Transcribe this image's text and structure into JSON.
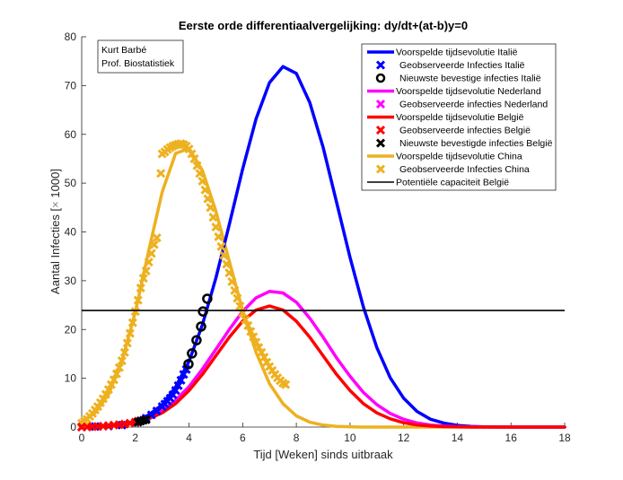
{
  "chart_data": {
    "type": "line",
    "title": "Eerste orde differentiaalvergelijking: dy/dt+(at-b)y=0",
    "xlabel": "Tijd [Weken] sinds uitbraak",
    "ylabel": "Aantal Infecties [× 1000]",
    "ylabel_parts": {
      "text": "Aantal Infecties [",
      "symbol": "×",
      "tail": " 1000]"
    },
    "xlim": [
      0,
      18
    ],
    "ylim": [
      0,
      80
    ],
    "xticks": [
      0,
      2,
      4,
      6,
      8,
      10,
      12,
      14,
      16,
      18
    ],
    "yticks": [
      0,
      10,
      20,
      30,
      40,
      50,
      60,
      70,
      80
    ],
    "grid": false,
    "legend_position": "top-right",
    "annotation": [
      "Kurt Barbé",
      "Prof. Biostatistiek"
    ],
    "x": [
      0,
      0.5,
      1,
      1.5,
      2,
      2.5,
      3,
      3.5,
      4,
      4.5,
      5,
      5.5,
      6,
      6.5,
      7,
      7.5,
      8,
      8.5,
      9,
      9.5,
      10,
      10.5,
      11,
      11.5,
      12,
      12.5,
      13,
      13.5,
      14,
      14.5,
      15,
      15.5,
      16,
      16.5,
      17,
      17.5,
      18
    ],
    "series": [
      {
        "name": "Voorspelde tijdsevolutie Italië",
        "kind": "line",
        "color": "#0000ff",
        "values": [
          0.04,
          0.1,
          0.25,
          0.57,
          1.2,
          2.5,
          4.6,
          8.2,
          13.5,
          21.0,
          30.5,
          41.5,
          52.9,
          63.2,
          70.6,
          73.9,
          72.5,
          66.5,
          57.3,
          46.1,
          34.8,
          24.6,
          16.3,
          10.1,
          5.9,
          3.2,
          1.6,
          0.8,
          0.35,
          0.15,
          0.06,
          0.02,
          0,
          0,
          0,
          0,
          0
        ]
      },
      {
        "name": "Geobserveerde Infecties Italië",
        "kind": "scatter",
        "marker": "x",
        "color": "#0000ff",
        "points": [
          [
            0,
            0.0
          ],
          [
            0.5,
            0.1
          ],
          [
            1.0,
            0.2
          ],
          [
            1.5,
            0.4
          ],
          [
            2.0,
            0.9
          ],
          [
            2.2,
            1.3
          ],
          [
            2.4,
            1.8
          ],
          [
            2.6,
            2.5
          ],
          [
            2.8,
            3.3
          ],
          [
            3.0,
            4.2
          ],
          [
            3.1,
            4.7
          ],
          [
            3.2,
            5.3
          ],
          [
            3.3,
            5.9
          ],
          [
            3.4,
            6.6
          ],
          [
            3.5,
            7.5
          ],
          [
            3.6,
            8.5
          ],
          [
            3.7,
            9.6
          ],
          [
            3.8,
            10.8
          ],
          [
            3.9,
            11.8
          ]
        ]
      },
      {
        "name": "Nieuwste bevestige infecties Italië",
        "kind": "scatter",
        "marker": "o",
        "color": "#000000",
        "points": [
          [
            3.98,
            12.9
          ],
          [
            4.11,
            15.1
          ],
          [
            4.28,
            17.8
          ],
          [
            4.45,
            20.6
          ],
          [
            4.52,
            23.7
          ],
          [
            4.68,
            26.3
          ]
        ]
      },
      {
        "name": "Voorspelde tijdsevolutie Nederland",
        "kind": "line",
        "color": "#ff00ff",
        "values": [
          0.05,
          0.13,
          0.28,
          0.57,
          1.1,
          2.0,
          3.4,
          5.5,
          8.3,
          11.9,
          15.9,
          20.0,
          23.7,
          26.5,
          27.8,
          27.5,
          25.6,
          22.3,
          18.4,
          14.2,
          10.4,
          7.1,
          4.6,
          2.8,
          1.6,
          0.85,
          0.43,
          0.2,
          0.09,
          0.04,
          0,
          0,
          0,
          0,
          0,
          0,
          0
        ]
      },
      {
        "name": "Geobserveerde infecties Nederland",
        "kind": "scatter",
        "marker": "x",
        "color": "#ff00ff",
        "points": []
      },
      {
        "name": "Voorspelde tijdsevolutie België",
        "kind": "line",
        "color": "#ff0000",
        "values": [
          0.04,
          0.09,
          0.2,
          0.44,
          0.89,
          1.7,
          2.9,
          4.8,
          7.5,
          10.8,
          14.6,
          18.4,
          21.7,
          24.0,
          24.8,
          24.0,
          21.7,
          18.4,
          14.6,
          10.8,
          7.5,
          4.8,
          2.9,
          1.7,
          0.89,
          0.44,
          0.2,
          0.09,
          0.04,
          0,
          0,
          0,
          0,
          0,
          0,
          0,
          0
        ]
      },
      {
        "name": "Geobserveerde infecties België",
        "kind": "scatter",
        "marker": "x",
        "color": "#ff0000",
        "points": [
          [
            0,
            0.0
          ],
          [
            0.2,
            0.0
          ],
          [
            0.4,
            0.1
          ],
          [
            0.6,
            0.1
          ],
          [
            0.8,
            0.2
          ],
          [
            1.0,
            0.3
          ],
          [
            1.2,
            0.4
          ],
          [
            1.4,
            0.5
          ],
          [
            1.6,
            0.6
          ],
          [
            1.8,
            0.8
          ],
          [
            2.0,
            1.0
          ],
          [
            2.1,
            1.2
          ]
        ]
      },
      {
        "name": "Nieuwste bevestigde infecties België",
        "kind": "scatter",
        "marker": "x",
        "color": "#000000",
        "points": [
          [
            2.1,
            1.0
          ],
          [
            2.2,
            1.2
          ],
          [
            2.3,
            1.4
          ],
          [
            2.4,
            1.5
          ]
        ]
      },
      {
        "name": "Voorspelde tijdsevolutie China",
        "kind": "line",
        "color": "#edb120",
        "values": [
          1.1,
          2.9,
          6.7,
          13.5,
          23.6,
          36.2,
          48.2,
          56.1,
          57.1,
          52.6,
          44.3,
          34.0,
          23.9,
          15.3,
          8.9,
          4.8,
          2.3,
          1.0,
          0.4,
          0.15,
          0.05,
          0,
          0,
          0,
          0,
          0,
          0,
          0,
          0,
          0,
          0,
          0,
          0,
          0,
          0,
          0,
          0
        ]
      },
      {
        "name": "Geobserveerde Infecties China",
        "kind": "scatter",
        "marker": "x",
        "color": "#edb120",
        "points": [
          [
            0,
            0.8
          ],
          [
            0.1,
            1.2
          ],
          [
            0.2,
            1.6
          ],
          [
            0.3,
            2.2
          ],
          [
            0.4,
            2.8
          ],
          [
            0.5,
            3.5
          ],
          [
            0.6,
            4.2
          ],
          [
            0.7,
            5.0
          ],
          [
            0.8,
            5.8
          ],
          [
            0.9,
            6.7
          ],
          [
            1.0,
            7.7
          ],
          [
            1.1,
            8.7
          ],
          [
            1.2,
            9.7
          ],
          [
            1.3,
            10.9
          ],
          [
            1.4,
            12.2
          ],
          [
            1.5,
            13.6
          ],
          [
            1.6,
            15.3
          ],
          [
            1.7,
            17.2
          ],
          [
            1.8,
            19.2
          ],
          [
            1.9,
            21.4
          ],
          [
            2.0,
            23.7
          ],
          [
            2.1,
            26.0
          ],
          [
            2.2,
            28.5
          ],
          [
            2.3,
            30.5
          ],
          [
            2.4,
            32.0
          ],
          [
            2.5,
            33.8
          ],
          [
            2.6,
            35.6
          ],
          [
            2.7,
            37.4
          ],
          [
            2.8,
            38.8
          ],
          [
            2.95,
            52.0
          ],
          [
            3.0,
            56.0
          ],
          [
            3.1,
            56.4
          ],
          [
            3.2,
            56.9
          ],
          [
            3.3,
            57.3
          ],
          [
            3.4,
            57.6
          ],
          [
            3.5,
            57.8
          ],
          [
            3.6,
            58.0
          ],
          [
            3.7,
            58.1
          ],
          [
            3.8,
            57.9
          ],
          [
            3.9,
            57.6
          ],
          [
            4.0,
            57.0
          ],
          [
            4.1,
            56.0
          ],
          [
            4.2,
            55.0
          ],
          [
            4.3,
            53.6
          ],
          [
            4.4,
            52.0
          ],
          [
            4.5,
            50.4
          ],
          [
            4.6,
            48.6
          ],
          [
            4.7,
            46.8
          ],
          [
            4.8,
            45.0
          ],
          [
            4.9,
            43.0
          ],
          [
            5.0,
            41.0
          ],
          [
            5.1,
            39.0
          ],
          [
            5.2,
            37.0
          ],
          [
            5.3,
            35.2
          ],
          [
            5.4,
            33.4
          ],
          [
            5.5,
            31.6
          ],
          [
            5.6,
            29.8
          ],
          [
            5.7,
            28.0
          ],
          [
            5.8,
            26.4
          ],
          [
            5.9,
            24.8
          ],
          [
            6.0,
            23.4
          ],
          [
            6.1,
            22.0
          ],
          [
            6.2,
            20.8
          ],
          [
            6.3,
            19.6
          ],
          [
            6.4,
            18.5
          ],
          [
            6.5,
            17.4
          ],
          [
            6.6,
            16.3
          ],
          [
            6.7,
            15.3
          ],
          [
            6.8,
            14.3
          ],
          [
            6.9,
            13.3
          ],
          [
            7.0,
            12.4
          ],
          [
            7.1,
            11.6
          ],
          [
            7.2,
            10.8
          ],
          [
            7.3,
            10.1
          ],
          [
            7.4,
            9.5
          ],
          [
            7.5,
            9.0
          ],
          [
            7.6,
            8.7
          ]
        ]
      },
      {
        "name": "Potentiële capaciteit België",
        "kind": "hline",
        "color": "#000000",
        "y": 23.9
      }
    ]
  }
}
